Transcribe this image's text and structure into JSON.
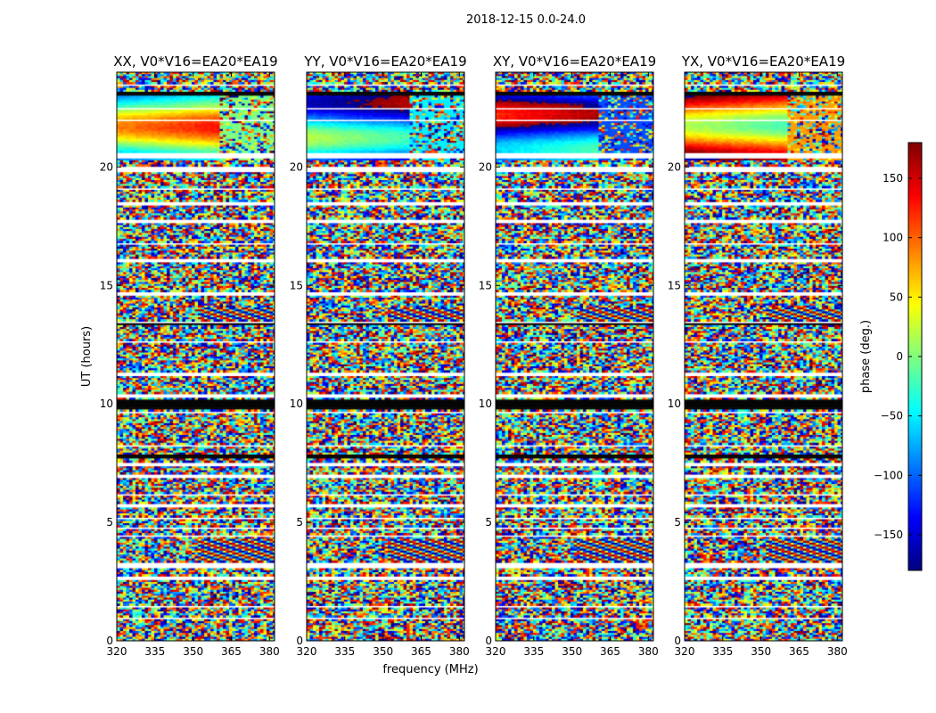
{
  "figure": {
    "suptitle": "2018-12-15 0.0-24.0"
  },
  "chart_data": {
    "type": "heatmap",
    "xlabel": "frequency (MHz)",
    "ylabel": "UT (hours)",
    "x_ticks": [
      320,
      335,
      350,
      365,
      380
    ],
    "x_tick_labels": [
      "320",
      "335",
      "350",
      "365",
      "380"
    ],
    "xlim": [
      320,
      382
    ],
    "y_ticks": [
      0,
      5,
      10,
      15,
      20
    ],
    "y_tick_labels": [
      "0",
      "5",
      "10",
      "15",
      "20"
    ],
    "ylim": [
      0,
      24
    ],
    "panels": [
      {
        "title": "XX, V0*V16=EA20*EA19",
        "hue_bias": 0.0
      },
      {
        "title": "YY, V0*V16=EA20*EA19",
        "hue_bias": -0.35
      },
      {
        "title": "XY, V0*V16=EA20*EA19",
        "hue_bias": -0.75
      },
      {
        "title": "YX, V0*V16=EA20*EA19",
        "hue_bias": 0.55
      }
    ],
    "colorbar": {
      "label": "phase (deg.)",
      "range": [
        -180,
        180
      ],
      "ticks": [
        150,
        100,
        50,
        0,
        -50,
        -100,
        -150
      ],
      "tick_labels": [
        "150",
        "100",
        "50",
        "0",
        "−50",
        "−100",
        "−150"
      ],
      "colormap": "jet"
    },
    "blank_bands_hours": [
      [
        0.9,
        1.0
      ],
      [
        1.4,
        1.5
      ],
      [
        2.6,
        2.7
      ],
      [
        3.1,
        3.3
      ],
      [
        4.4,
        4.5
      ],
      [
        4.7,
        4.8
      ],
      [
        5.1,
        5.2
      ],
      [
        5.6,
        5.8
      ],
      [
        6.1,
        6.2
      ],
      [
        6.9,
        7.0
      ],
      [
        7.4,
        7.5
      ],
      [
        8.2,
        8.3
      ],
      [
        9.6,
        9.7
      ],
      [
        10.3,
        10.4
      ],
      [
        11.2,
        11.3
      ],
      [
        12.6,
        12.7
      ],
      [
        13.4,
        13.5
      ],
      [
        14.6,
        14.7
      ],
      [
        16.0,
        16.1
      ],
      [
        16.7,
        16.8
      ],
      [
        17.6,
        17.8
      ],
      [
        18.4,
        18.5
      ],
      [
        19.0,
        19.1
      ],
      [
        19.8,
        20.0
      ],
      [
        20.4,
        20.6
      ],
      [
        21.9,
        22.0
      ],
      [
        22.4,
        22.5
      ],
      [
        23.4,
        23.5
      ]
    ],
    "dark_bands_hours": [
      [
        9.8,
        10.2
      ],
      [
        7.7,
        7.9
      ],
      [
        13.3,
        13.4
      ],
      [
        23.0,
        23.2
      ]
    ]
  }
}
